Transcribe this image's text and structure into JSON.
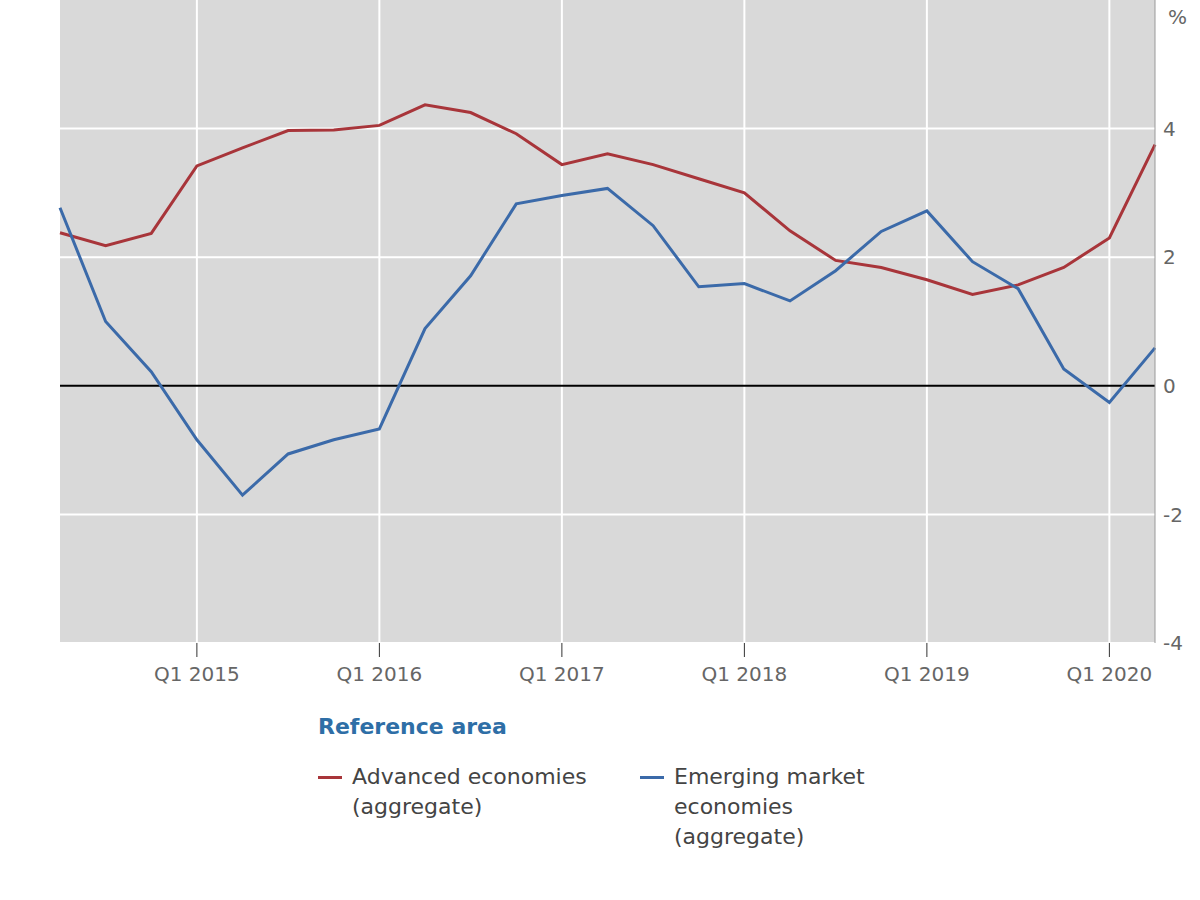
{
  "chart_data": {
    "type": "line",
    "y_label": "%",
    "legend_title": "Reference area",
    "categories": [
      null,
      null,
      null,
      "Q1 2015",
      null,
      null,
      null,
      "Q1 2016",
      null,
      null,
      null,
      "Q1 2017",
      null,
      null,
      null,
      "Q1 2018",
      null,
      null,
      null,
      "Q1 2019",
      null,
      null,
      null,
      "Q1 2020",
      null
    ],
    "series": [
      {
        "name": "Advanced economies (aggregate)",
        "color": "#a8353a",
        "values": [
          2.38,
          2.18,
          2.37,
          3.42,
          3.7,
          3.97,
          3.98,
          4.05,
          4.37,
          4.25,
          3.92,
          3.44,
          3.61,
          3.44,
          3.22,
          3.0,
          2.41,
          1.95,
          1.84,
          1.65,
          1.42,
          1.57,
          1.84,
          2.3,
          3.75
        ]
      },
      {
        "name": "Emerging market economies (aggregate)",
        "color": "#3b6aa9",
        "values": [
          2.77,
          1.0,
          0.22,
          -0.84,
          -1.7,
          -1.06,
          -0.84,
          -0.67,
          0.89,
          1.71,
          2.83,
          2.96,
          3.07,
          2.49,
          1.54,
          1.59,
          1.32,
          1.79,
          2.4,
          2.72,
          1.93,
          1.51,
          0.26,
          -0.26,
          0.59
        ]
      }
    ],
    "ylim": [
      -4,
      6
    ],
    "yticks": [
      -4,
      -2,
      0,
      2,
      4
    ],
    "grid": true
  }
}
